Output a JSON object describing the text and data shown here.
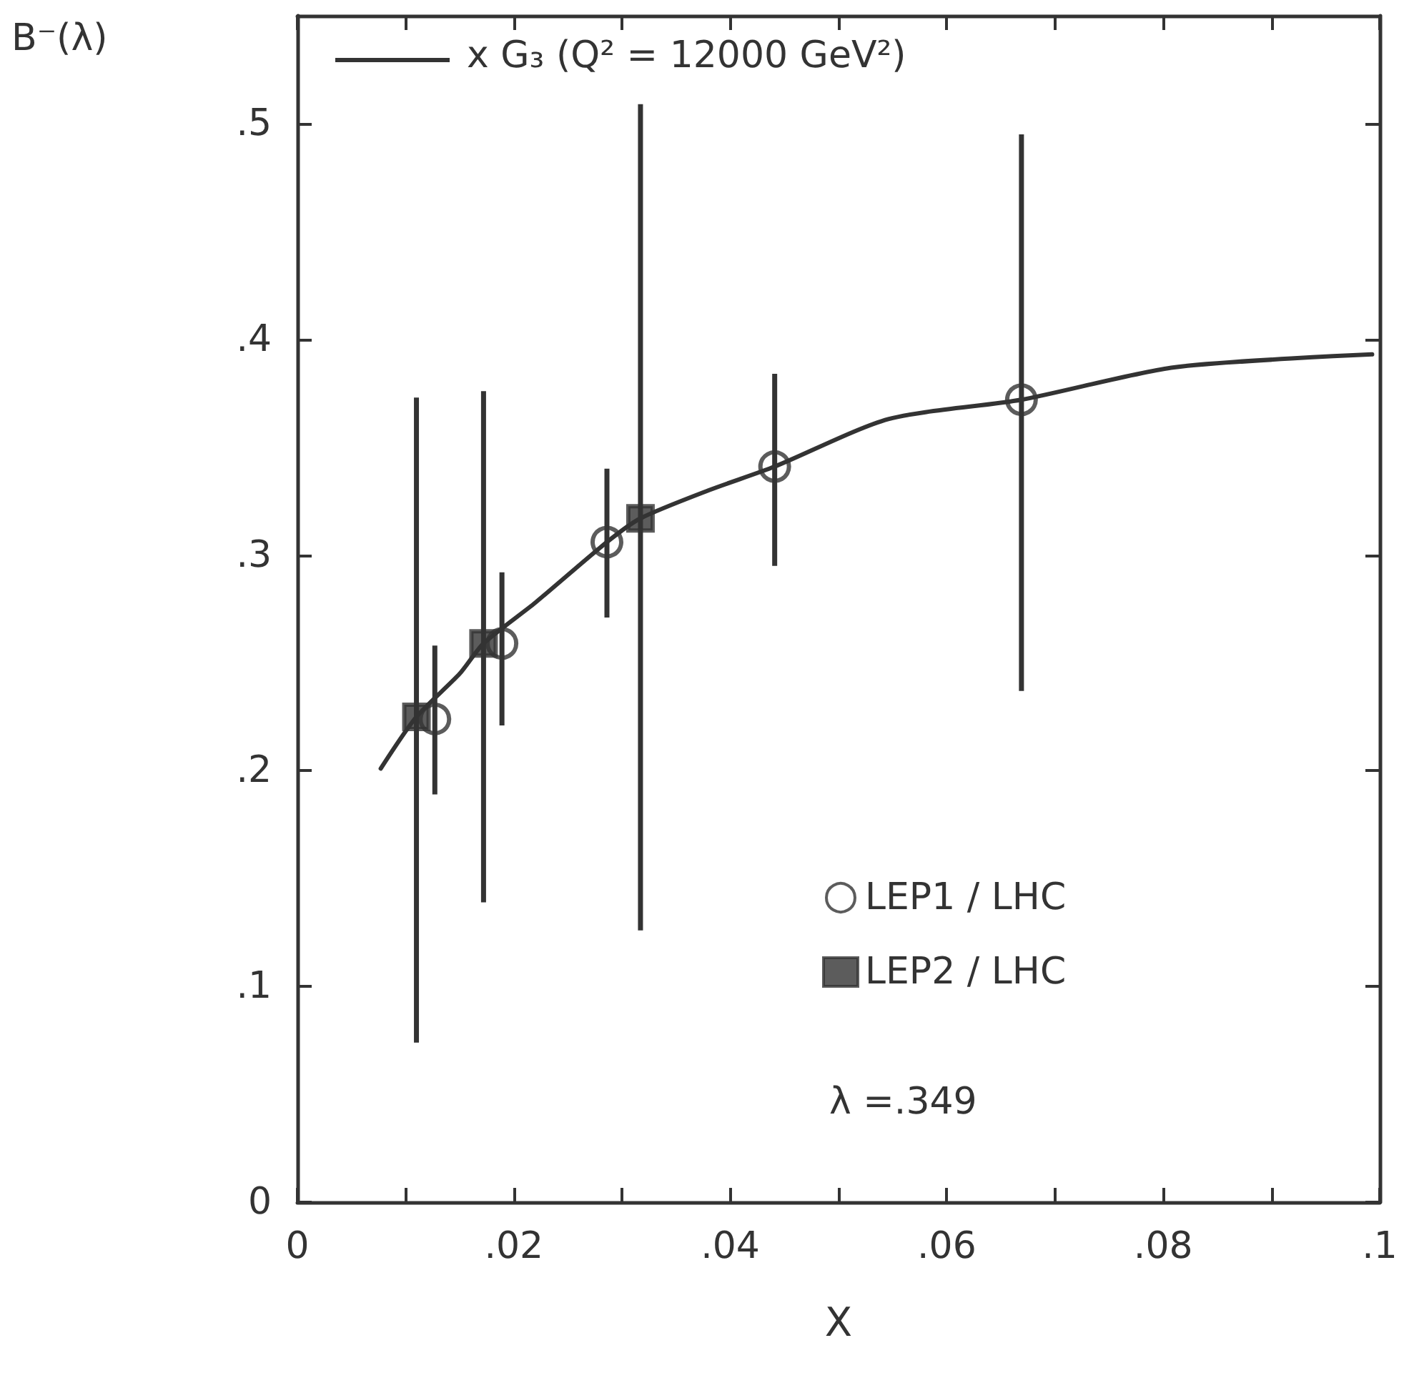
{
  "chart_data": {
    "type": "scatter",
    "xlabel": "X",
    "ylabel": "B⁻(λ)",
    "xlim": [
      0,
      0.1
    ],
    "ylim": [
      0,
      0.55
    ],
    "xticks": [
      0,
      {
        "value": 0.01,
        "label": null
      },
      {
        "value": 0.02,
        "label": ".02"
      },
      {
        "value": 0.03,
        "label": null
      },
      {
        "value": 0.04,
        "label": ".04"
      },
      {
        "value": 0.05,
        "label": null
      },
      {
        "value": 0.06,
        "label": ".06"
      },
      {
        "value": 0.07,
        "label": null
      },
      {
        "value": 0.08,
        "label": ".08"
      },
      {
        "value": 0.09,
        "label": null
      },
      {
        "value": 0.1,
        "label": ".1"
      }
    ],
    "yticks": [
      0,
      {
        "value": 0.1,
        "label": ".1"
      },
      {
        "value": 0.2,
        "label": ".2"
      },
      {
        "value": 0.3,
        "label": ".3"
      },
      {
        "value": 0.4,
        "label": ".4"
      },
      {
        "value": 0.5,
        "label": ".5"
      }
    ],
    "grid": false,
    "legend": "top left",
    "annotations": [
      "λ =.349"
    ],
    "series": [
      {
        "name": "x G₃ (Q² = 12000 GeV²)",
        "type": "line",
        "color": "#333333",
        "marker": "none",
        "line_style": "solid",
        "x": [
          0.0077,
          0.011,
          0.015,
          0.0172,
          0.022,
          0.0286,
          0.0317,
          0.038,
          0.0441,
          0.0546,
          0.0669,
          0.081,
          0.0993
        ],
        "values": [
          0.201,
          0.225,
          0.245,
          0.259,
          0.278,
          0.306,
          0.317,
          0.33,
          0.341,
          0.363,
          0.372,
          0.387,
          0.393
        ]
      },
      {
        "name": "LEP1 / LHC",
        "color": "#333333",
        "marker": "circle",
        "x": [
          0.0127,
          0.0189,
          0.0286,
          0.0441,
          0.0669
        ],
        "values": [
          0.224,
          0.259,
          0.306,
          0.341,
          0.372
        ],
        "errors": [
          [
            0.189,
            0.258
          ],
          [
            0.221,
            0.292
          ],
          [
            0.271,
            0.34
          ],
          [
            0.295,
            0.384
          ],
          [
            0.237,
            0.495
          ]
        ]
      },
      {
        "name": "LEP2 / LHC",
        "color": "#333333",
        "marker": "square",
        "x": [
          0.011,
          0.0172,
          0.0317
        ],
        "values": [
          0.225,
          0.259,
          0.317
        ],
        "errors": [
          [
            0.074,
            0.373
          ],
          [
            0.139,
            0.376
          ],
          [
            0.126,
            0.509
          ]
        ]
      }
    ]
  }
}
